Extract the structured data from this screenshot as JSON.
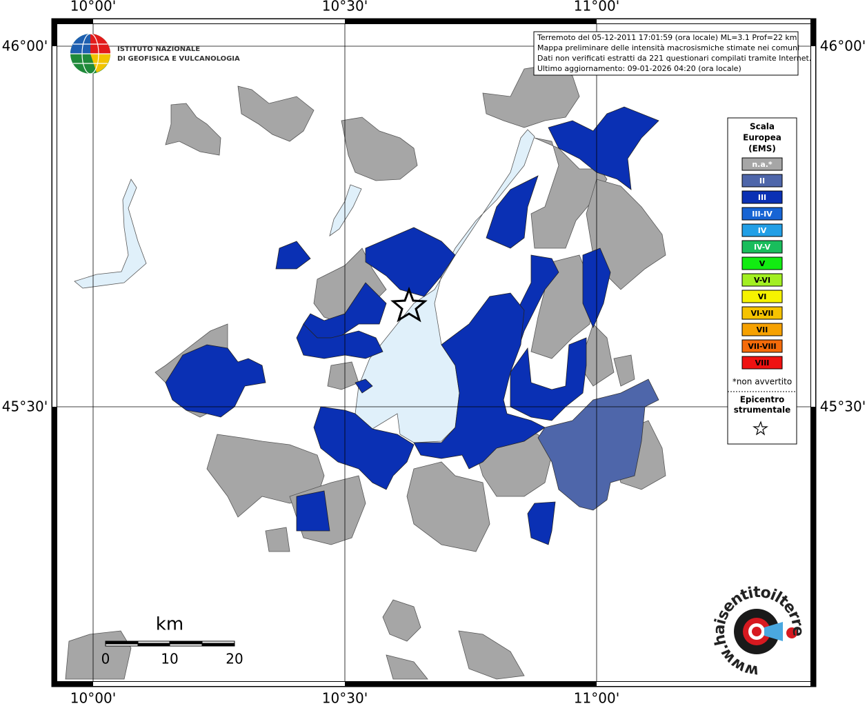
{
  "map": {
    "graticule": {
      "top": [
        "10°00'",
        "10°30'",
        "11°00'"
      ],
      "bottom": [
        "10°00'",
        "10°30'",
        "11°00'"
      ],
      "left": [
        "46°00'",
        "45°30'"
      ],
      "right": [
        "46°00'",
        "45°30'"
      ]
    },
    "logo": {
      "line1": "ISTITUTO NAZIONALE",
      "line2": "DI GEOFISICA E VULCANOLOGIA"
    },
    "info": [
      "Terremoto del 05-12-2011 17:01:59 (ora locale) ML=3.1 Prof=22 km",
      "Mappa preliminare delle intensità macrosismiche stimate nei comuni",
      "Dati non verificati estratti da 221 questionari compilati tramite Internet.",
      "Ultimo aggiornamento: 09-01-2026 04:20 (ora locale)"
    ],
    "legend": {
      "title": [
        "Scala",
        "Europea",
        "(EMS)"
      ],
      "items": [
        {
          "label": "n.a.*",
          "color": "#a6a6a6",
          "text_color": "#ffffff"
        },
        {
          "label": "II",
          "color": "#4e66aa",
          "text_color": "#ffffff"
        },
        {
          "label": "III",
          "color": "#0a30b4",
          "text_color": "#ffffff"
        },
        {
          "label": "III-IV",
          "color": "#1764d4",
          "text_color": "#ffffff"
        },
        {
          "label": "IV",
          "color": "#229fe6",
          "text_color": "#ffffff"
        },
        {
          "label": "IV-V",
          "color": "#19bd5c",
          "text_color": "#ffffff"
        },
        {
          "label": "V",
          "color": "#12ec12",
          "text_color": "#000000"
        },
        {
          "label": "V-VI",
          "color": "#a2ef22",
          "text_color": "#000000"
        },
        {
          "label": "VI",
          "color": "#f6f300",
          "text_color": "#000000"
        },
        {
          "label": "VI-VII",
          "color": "#f6c300",
          "text_color": "#000000"
        },
        {
          "label": "VII",
          "color": "#f6a100",
          "text_color": "#000000"
        },
        {
          "label": "VII-VIII",
          "color": "#f56b0a",
          "text_color": "#000000"
        },
        {
          "label": "VIII",
          "color": "#ef1111",
          "text_color": "#000000"
        }
      ],
      "note": "*non avvertito",
      "epicenter": [
        "Epicentro",
        "strumentale"
      ]
    },
    "scale": {
      "unit": "km",
      "labels": [
        "0",
        "10",
        "20"
      ]
    },
    "watermark": "www.haisentitoilterremoto.it"
  }
}
